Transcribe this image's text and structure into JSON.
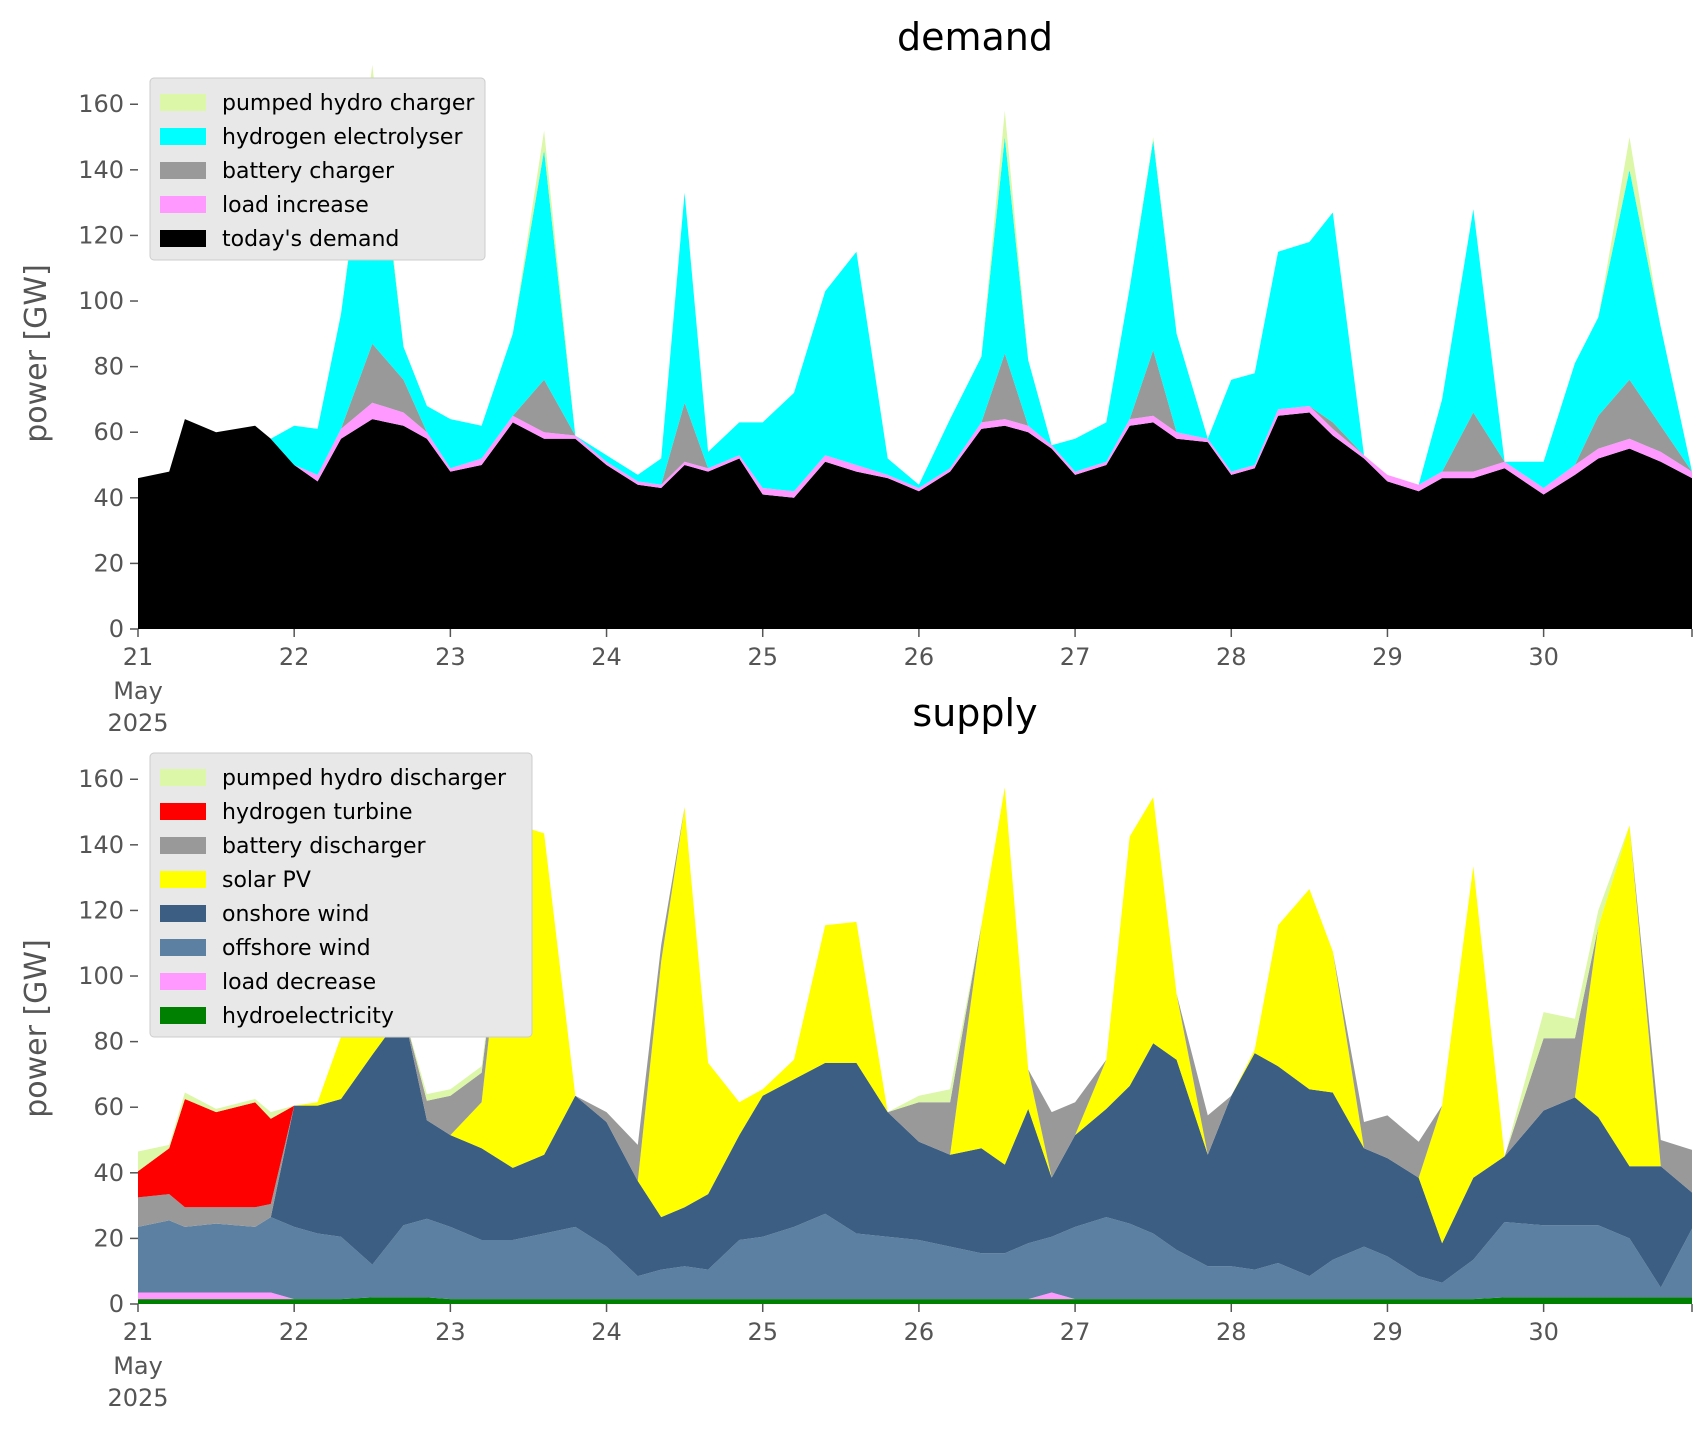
{
  "chart_data": [
    {
      "type": "area",
      "stacked": true,
      "title": "demand",
      "xlabel": "",
      "ylabel": "power [GW]",
      "x_unit": "day (May 2025)",
      "xlim": [
        21,
        30.95
      ],
      "ylim": [
        0,
        168
      ],
      "xticks": [
        "21",
        "22",
        "23",
        "24",
        "25",
        "26",
        "27",
        "28",
        "29",
        "30"
      ],
      "xtick_sub": [
        "May",
        "2025"
      ],
      "yticks": [
        0,
        20,
        40,
        60,
        80,
        100,
        120,
        140,
        160
      ],
      "grid": false,
      "legend_position": "upper-left",
      "legend_order": [
        "pumped hydro charger",
        "hydrogen electrolyser",
        "battery charger",
        "load increase",
        "today's demand"
      ],
      "x": [
        21,
        21.2,
        21.3,
        21.5,
        21.75,
        21.85,
        22,
        22.15,
        22.3,
        22.5,
        22.7,
        22.85,
        23,
        23.2,
        23.4,
        23.6,
        23.8,
        24,
        24.2,
        24.35,
        24.5,
        24.65,
        24.85,
        25,
        25.2,
        25.4,
        25.6,
        25.8,
        26,
        26.2,
        26.4,
        26.55,
        26.7,
        26.85,
        27,
        27.2,
        27.35,
        27.5,
        27.65,
        27.85,
        28,
        28.15,
        28.3,
        28.5,
        28.65,
        28.85,
        29,
        29.2,
        29.35,
        29.55,
        29.75,
        30,
        30.2,
        30.35,
        30.55,
        30.75,
        30.95
      ],
      "series": [
        {
          "name": "today's demand",
          "color": "#000000",
          "values": [
            46,
            48,
            64,
            60,
            62,
            58,
            50,
            45,
            58,
            64,
            62,
            58,
            48,
            50,
            63,
            58,
            58,
            50,
            44,
            43,
            50,
            48,
            52,
            41,
            40,
            51,
            48,
            46,
            42,
            48,
            61,
            62,
            60,
            55,
            47,
            50,
            62,
            63,
            58,
            57,
            47,
            49,
            65,
            66,
            59,
            52,
            45,
            42,
            46,
            46,
            49,
            41,
            47,
            52,
            55,
            51,
            46
          ]
        },
        {
          "name": "load increase",
          "color": "#ff99ff",
          "values": [
            0,
            0,
            0,
            0,
            0,
            0,
            0,
            2,
            3,
            5,
            4,
            2,
            1,
            2,
            2,
            2,
            1,
            1,
            1,
            1,
            1,
            1,
            1,
            2,
            2,
            2,
            2,
            1,
            1,
            1,
            2,
            2,
            2,
            1,
            1,
            1,
            2,
            2,
            2,
            1,
            1,
            1,
            2,
            2,
            2,
            1,
            2,
            2,
            2,
            2,
            2,
            2,
            3,
            3,
            3,
            3,
            2
          ]
        },
        {
          "name": "battery charger",
          "color": "#999999",
          "values": [
            0,
            0,
            0,
            0,
            0,
            0,
            0,
            0,
            0,
            18,
            10,
            0,
            0,
            0,
            0,
            16,
            0,
            0,
            0,
            0,
            18,
            0,
            0,
            0,
            0,
            0,
            0,
            0,
            0,
            0,
            0,
            20,
            0,
            0,
            0,
            0,
            0,
            20,
            0,
            0,
            0,
            0,
            0,
            0,
            2,
            0,
            0,
            0,
            0,
            18,
            0,
            0,
            0,
            10,
            18,
            8,
            0
          ]
        },
        {
          "name": "hydrogen electrolyser",
          "color": "#00ffff",
          "values": [
            0,
            0,
            0,
            0,
            0,
            0,
            12,
            14,
            35,
            80,
            10,
            8,
            15,
            10,
            25,
            70,
            0,
            2,
            2,
            8,
            64,
            5,
            10,
            20,
            30,
            50,
            65,
            5,
            1,
            15,
            20,
            66,
            20,
            0,
            10,
            12,
            40,
            64,
            30,
            0,
            28,
            28,
            48,
            50,
            64,
            0,
            0,
            0,
            22,
            62,
            0,
            8,
            31,
            30,
            64,
            30,
            0
          ]
        },
        {
          "name": "pumped hydro charger",
          "color": "#dcf7a8",
          "values": [
            0,
            0,
            0,
            0,
            0,
            0,
            0,
            0,
            0,
            5,
            0,
            0,
            0,
            0,
            0,
            6,
            0,
            0,
            0,
            0,
            0,
            0,
            0,
            0,
            0,
            0,
            0,
            0,
            0,
            0,
            0,
            8,
            0,
            0,
            0,
            0,
            0,
            1,
            0,
            0,
            0,
            0,
            0,
            0,
            0,
            0,
            0,
            0,
            0,
            0,
            0,
            0,
            0,
            0,
            10,
            0,
            0
          ]
        }
      ]
    },
    {
      "type": "area",
      "stacked": true,
      "title": "supply",
      "xlabel": "",
      "ylabel": "power [GW]",
      "x_unit": "day (May 2025)",
      "xlim": [
        21,
        30.95
      ],
      "ylim": [
        0,
        168
      ],
      "xticks": [
        "21",
        "22",
        "23",
        "24",
        "25",
        "26",
        "27",
        "28",
        "29",
        "30"
      ],
      "xtick_sub": [
        "May",
        "2025"
      ],
      "yticks": [
        0,
        20,
        40,
        60,
        80,
        100,
        120,
        140,
        160
      ],
      "grid": false,
      "legend_position": "upper-left",
      "legend_order": [
        "pumped hydro discharger",
        "hydrogen turbine",
        "battery discharger",
        "solar PV",
        "onshore wind",
        "offshore wind",
        "load decrease",
        "hydroelectricity"
      ],
      "x": [
        21,
        21.2,
        21.3,
        21.5,
        21.75,
        21.85,
        22,
        22.15,
        22.3,
        22.5,
        22.7,
        22.85,
        23,
        23.2,
        23.4,
        23.6,
        23.8,
        24,
        24.2,
        24.35,
        24.5,
        24.65,
        24.85,
        25,
        25.2,
        25.4,
        25.6,
        25.8,
        26,
        26.2,
        26.4,
        26.55,
        26.7,
        26.85,
        27,
        27.2,
        27.35,
        27.5,
        27.65,
        27.85,
        28,
        28.15,
        28.3,
        28.5,
        28.65,
        28.85,
        29,
        29.2,
        29.35,
        29.55,
        29.75,
        30,
        30.2,
        30.35,
        30.55,
        30.75,
        30.95
      ],
      "series": [
        {
          "name": "hydroelectricity",
          "color": "#008000",
          "values": [
            1.5,
            1.5,
            1.5,
            1.5,
            1.5,
            1.5,
            1.5,
            1.5,
            1.5,
            2,
            2,
            2,
            1.5,
            1.5,
            1.5,
            1.5,
            1.5,
            1.5,
            1.5,
            1.5,
            1.5,
            1.5,
            1.5,
            1.5,
            1.5,
            1.5,
            1.5,
            1.5,
            1.5,
            1.5,
            1.5,
            1.5,
            1.5,
            1.5,
            1.5,
            1.5,
            1.5,
            1.5,
            1.5,
            1.5,
            1.5,
            1.5,
            1.5,
            1.5,
            1.5,
            1.5,
            1.5,
            1.5,
            1.5,
            1.5,
            2,
            2,
            2,
            2,
            2,
            2,
            2
          ]
        },
        {
          "name": "load decrease",
          "color": "#ff99ff",
          "values": [
            2,
            2,
            2,
            2,
            2,
            2,
            0,
            0,
            0,
            0,
            0,
            0,
            0,
            0,
            0,
            0,
            0,
            0,
            0,
            0,
            0,
            0,
            0,
            0,
            0,
            0,
            0,
            0,
            0,
            0,
            0,
            0,
            0,
            2,
            0,
            0,
            0,
            0,
            0,
            0,
            0,
            0,
            0,
            0,
            0,
            0,
            0,
            0,
            0,
            0,
            0,
            0,
            0,
            0,
            0,
            0,
            0
          ]
        },
        {
          "name": "offshore wind",
          "color": "#5b80a1",
          "values": [
            20,
            22,
            20,
            21,
            20,
            23,
            22,
            20,
            19,
            10,
            22,
            24,
            22,
            18,
            18,
            20,
            22,
            16,
            7,
            9,
            10,
            9,
            18,
            19,
            22,
            26,
            20,
            19,
            18,
            16,
            14,
            14,
            17,
            17,
            22,
            25,
            23,
            20,
            15,
            10,
            10,
            9,
            11,
            7,
            12,
            16,
            13,
            7,
            5,
            12,
            23,
            22,
            22,
            22,
            18,
            3,
            21
          ]
        },
        {
          "name": "onshore wind",
          "color": "#3c5e82",
          "values": [
            0,
            0,
            0,
            0,
            0,
            0,
            37,
            39,
            42,
            64,
            65,
            30,
            28,
            28,
            22,
            24,
            40,
            38,
            29,
            16,
            18,
            23,
            32,
            43,
            45,
            46,
            52,
            38,
            30,
            28,
            32,
            27,
            41,
            18,
            28,
            33,
            42,
            58,
            58,
            34,
            52,
            66,
            60,
            57,
            51,
            30,
            30,
            30,
            12,
            25,
            20,
            35,
            39,
            33,
            22,
            37,
            11
          ]
        },
        {
          "name": "solar PV",
          "color": "#ffff00",
          "values": [
            0,
            0,
            0,
            0,
            0,
            0,
            0,
            1,
            19,
            68,
            0,
            0,
            0,
            14,
            105,
            98,
            0,
            0,
            0,
            78,
            122,
            40,
            10,
            2,
            6,
            42,
            43,
            0,
            0,
            0,
            68,
            115,
            12,
            0,
            0,
            15,
            76,
            75,
            20,
            0,
            0,
            1,
            43,
            61,
            43,
            0,
            0,
            0,
            42,
            95,
            0,
            0,
            0,
            58,
            104,
            0,
            0
          ]
        },
        {
          "name": "battery discharger",
          "color": "#999999",
          "values": [
            9,
            8,
            6,
            5,
            6,
            4,
            0,
            0,
            0,
            0,
            0,
            6,
            12,
            9,
            0,
            0,
            0,
            3,
            11,
            5,
            0,
            0,
            0,
            0,
            0,
            0,
            0,
            0,
            12,
            16,
            0,
            0,
            0,
            20,
            10,
            0,
            0,
            0,
            0,
            12,
            0,
            0,
            0,
            0,
            0,
            8,
            13,
            11,
            0,
            0,
            0,
            22,
            18,
            0,
            0,
            8,
            13
          ]
        },
        {
          "name": "hydrogen turbine",
          "color": "#ff0000",
          "values": [
            8,
            14,
            33,
            29,
            32,
            26,
            0,
            0,
            0,
            0,
            0,
            0,
            0,
            0,
            0,
            0,
            0,
            0,
            0,
            0,
            0,
            0,
            0,
            0,
            0,
            0,
            0,
            0,
            0,
            0,
            0,
            0,
            0,
            0,
            0,
            0,
            0,
            0,
            0,
            0,
            0,
            0,
            0,
            0,
            0,
            0,
            0,
            0,
            0,
            0,
            0,
            0,
            0,
            0,
            0,
            0,
            0
          ]
        },
        {
          "name": "pumped hydro discharger",
          "color": "#dcf7a8",
          "values": [
            6,
            1,
            2,
            1,
            1,
            2,
            0,
            0,
            0,
            20,
            0,
            2,
            2,
            2,
            0,
            0,
            0,
            0,
            0,
            0,
            0,
            0,
            0,
            0,
            0,
            0,
            0,
            0,
            2,
            4,
            0,
            0,
            0,
            0,
            0,
            0,
            0,
            0,
            0,
            0,
            0,
            0,
            0,
            0,
            0,
            0,
            0,
            0,
            0,
            0,
            0,
            8,
            6,
            5,
            0,
            0,
            0
          ]
        }
      ]
    }
  ]
}
